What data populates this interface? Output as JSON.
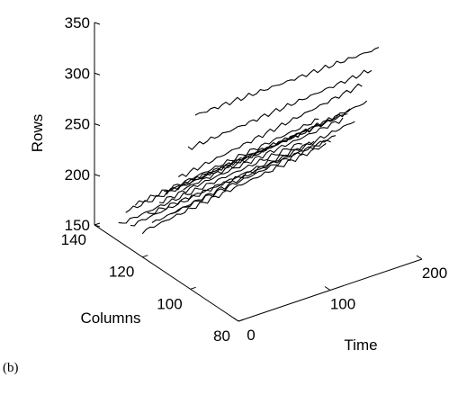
{
  "panel_label": "(b)",
  "chart_data": {
    "type": "line",
    "projection": "3d",
    "xlabel": "Time",
    "ylabel": "Columns",
    "zlabel": "Rows",
    "xlim": [
      0,
      200
    ],
    "ylim": [
      80,
      140
    ],
    "zlim": [
      150,
      350
    ],
    "xticks": [
      "0",
      "100",
      "200"
    ],
    "yticks": [
      "80",
      "100",
      "120",
      "140"
    ],
    "zticks": [
      "150",
      "200",
      "250",
      "300",
      "350"
    ],
    "grid": false,
    "series": [
      {
        "column": 98,
        "rows": [
          [
            0,
            325
          ],
          [
            200,
            330
          ]
        ]
      },
      {
        "column": 101,
        "rows": [
          [
            0,
            287
          ],
          [
            200,
            304
          ]
        ]
      },
      {
        "column": 103,
        "rows": [
          [
            0,
            244
          ],
          [
            200,
            269
          ]
        ]
      },
      {
        "column": 105,
        "rows": [
          [
            0,
            252
          ],
          [
            200,
            283
          ]
        ]
      },
      {
        "column": 108,
        "rows": [
          [
            0,
            212
          ],
          [
            200,
            242
          ]
        ]
      },
      {
        "column": 110,
        "rows": [
          [
            0,
            230
          ],
          [
            200,
            249
          ]
        ]
      },
      {
        "column": 111,
        "rows": [
          [
            0,
            228
          ],
          [
            200,
            245
          ]
        ]
      },
      {
        "column": 113,
        "rows": [
          [
            0,
            215
          ],
          [
            200,
            236
          ]
        ]
      },
      {
        "column": 116,
        "rows": [
          [
            0,
            190
          ],
          [
            200,
            215
          ]
        ]
      },
      {
        "column": 118,
        "rows": [
          [
            0,
            195
          ],
          [
            200,
            208
          ]
        ]
      },
      {
        "column": 120,
        "rows": [
          [
            0,
            175
          ],
          [
            200,
            200
          ]
        ]
      },
      {
        "column": 123,
        "rows": [
          [
            0,
            197
          ],
          [
            200,
            220
          ]
        ]
      },
      {
        "column": 125,
        "rows": [
          [
            0,
            173
          ],
          [
            200,
            195
          ]
        ]
      },
      {
        "column": 127,
        "rows": [
          [
            0,
            184
          ],
          [
            200,
            203
          ]
        ]
      },
      {
        "column": 130,
        "rows": [
          [
            0,
            166
          ],
          [
            200,
            186
          ]
        ]
      }
    ]
  }
}
